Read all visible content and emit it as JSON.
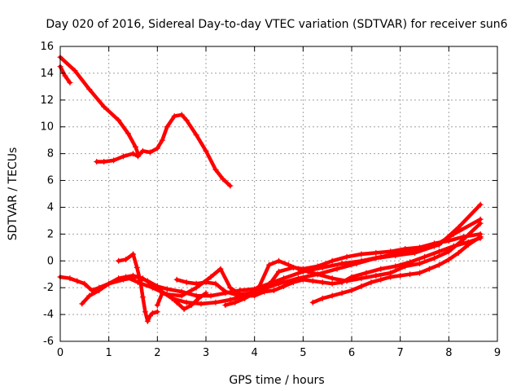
{
  "chart_data": {
    "type": "line",
    "title": "Day 020 of 2016, Sidereal Day-to-day VTEC variation (SDTVAR) for receiver sun6",
    "xlabel": "GPS time / hours",
    "ylabel": "SDTVAR / TECUs",
    "xlim": [
      0,
      9
    ],
    "ylim": [
      -6,
      16
    ],
    "xticks": [
      0,
      1,
      2,
      3,
      4,
      5,
      6,
      7,
      8,
      9
    ],
    "yticks": [
      -6,
      -4,
      -2,
      0,
      2,
      4,
      6,
      8,
      10,
      12,
      14,
      16
    ],
    "grid": true,
    "marker": "+",
    "color": "#ff0000",
    "series": [
      {
        "name": "s1",
        "x": [
          0.0,
          0.1,
          0.2
        ],
        "y": [
          14.5,
          13.8,
          13.3
        ]
      },
      {
        "name": "s2",
        "x": [
          0.0,
          0.3,
          0.6,
          0.9,
          1.2,
          1.4,
          1.55,
          1.6
        ],
        "y": [
          15.2,
          14.2,
          12.8,
          11.5,
          10.5,
          9.5,
          8.5,
          8.0
        ]
      },
      {
        "name": "s3",
        "x": [
          0.75,
          0.9,
          1.1,
          1.3,
          1.5,
          1.6,
          1.7,
          1.85,
          2.0,
          2.1,
          2.2,
          2.35,
          2.5,
          2.6,
          2.8,
          3.0,
          3.2,
          3.35,
          3.5
        ],
        "y": [
          7.4,
          7.4,
          7.5,
          7.8,
          8.0,
          7.8,
          8.2,
          8.1,
          8.4,
          9.0,
          10.0,
          10.8,
          10.9,
          10.5,
          9.4,
          8.2,
          6.8,
          6.1,
          5.6
        ]
      },
      {
        "name": "s4",
        "x": [
          0.0,
          0.2,
          0.35,
          0.5,
          0.65,
          0.8,
          1.0,
          1.3,
          1.6,
          1.8,
          2.0,
          2.2,
          2.5,
          2.8,
          3.1,
          3.4,
          3.7,
          4.0,
          4.3,
          4.6,
          5.0,
          5.4,
          5.8,
          6.2,
          6.6,
          7.0,
          7.4,
          7.8,
          8.2,
          8.65
        ],
        "y": [
          -1.2,
          -1.3,
          -1.5,
          -1.7,
          -2.2,
          -2.0,
          -1.7,
          -1.4,
          -1.2,
          -1.5,
          -1.9,
          -2.1,
          -2.3,
          -2.6,
          -2.6,
          -2.4,
          -2.2,
          -2.1,
          -1.7,
          -1.3,
          -0.8,
          -0.5,
          -0.2,
          0.0,
          0.3,
          0.6,
          0.8,
          1.2,
          2.5,
          4.2
        ]
      },
      {
        "name": "s5",
        "x": [
          0.45,
          0.6,
          0.8,
          1.0,
          1.2,
          1.5,
          1.7,
          1.9,
          2.1,
          2.3,
          2.6,
          2.9,
          3.2,
          3.5,
          3.8,
          4.1,
          4.5,
          4.9,
          5.3,
          5.7,
          6.1,
          6.5,
          6.9,
          7.3,
          7.7,
          8.1,
          8.65
        ],
        "y": [
          -3.2,
          -2.6,
          -2.2,
          -1.7,
          -1.3,
          -1.1,
          -1.3,
          -1.8,
          -2.3,
          -2.8,
          -3.1,
          -3.2,
          -3.1,
          -2.9,
          -2.6,
          -2.2,
          -1.7,
          -1.3,
          -1.0,
          -0.6,
          -0.2,
          0.2,
          0.4,
          0.6,
          1.1,
          2.0,
          3.1
        ]
      },
      {
        "name": "s6",
        "x": [
          1.5,
          1.58,
          1.65,
          1.7,
          1.75,
          1.8,
          1.85,
          1.9,
          2.0
        ],
        "y": [
          0.5,
          -0.5,
          -1.5,
          -2.7,
          -3.8,
          -4.5,
          -4.1,
          -3.9,
          -3.8
        ]
      },
      {
        "name": "s7",
        "x": [
          1.2,
          1.35,
          1.5
        ],
        "y": [
          0.0,
          0.1,
          0.5
        ]
      },
      {
        "name": "s8",
        "x": [
          1.35,
          1.6,
          1.9,
          2.2,
          2.5,
          2.8,
          3.1,
          3.3,
          3.5,
          3.7,
          3.9,
          4.1,
          4.3,
          4.5,
          4.7,
          4.9,
          5.1,
          5.3,
          5.6,
          5.9,
          6.2,
          6.5,
          6.8,
          7.1,
          7.4,
          7.7,
          8.0,
          8.3,
          8.65
        ],
        "y": [
          -1.2,
          -1.6,
          -2.0,
          -2.5,
          -2.6,
          -2.0,
          -1.2,
          -0.6,
          -2.0,
          -2.5,
          -2.4,
          -1.9,
          -0.3,
          0.0,
          -0.3,
          -0.6,
          -0.8,
          -1.0,
          -1.3,
          -1.5,
          -1.3,
          -1.1,
          -0.9,
          -0.4,
          -0.2,
          0.2,
          0.7,
          1.6,
          2.8
        ]
      },
      {
        "name": "s9",
        "x": [
          2.0,
          2.1,
          2.25,
          2.4,
          2.55,
          2.7,
          2.85,
          3.0
        ],
        "y": [
          -3.3,
          -2.4,
          -2.6,
          -3.1,
          -3.6,
          -3.3,
          -2.8,
          -2.4
        ]
      },
      {
        "name": "s10",
        "x": [
          2.4,
          2.6,
          2.8,
          3.0,
          3.2,
          3.4,
          3.6,
          3.8,
          4.0,
          4.2,
          4.5,
          4.8,
          5.0,
          5.3,
          5.6,
          5.9,
          6.2,
          6.5,
          6.8,
          7.1,
          7.4,
          7.7,
          8.0,
          8.3,
          8.65
        ],
        "y": [
          -1.4,
          -1.6,
          -1.7,
          -1.6,
          -1.7,
          -2.3,
          -2.5,
          -2.6,
          -2.6,
          -2.3,
          -0.8,
          -0.5,
          -0.6,
          -0.4,
          0.0,
          0.3,
          0.5,
          0.6,
          0.7,
          0.9,
          1.0,
          1.3,
          1.5,
          1.8,
          2.0
        ]
      },
      {
        "name": "s11",
        "x": [
          3.4,
          3.6,
          3.8,
          4.0,
          4.2,
          4.4,
          4.6,
          4.8,
          5.0,
          5.2,
          5.4,
          5.6,
          5.8,
          6.0,
          6.3,
          6.6,
          6.9,
          7.2,
          7.5,
          7.8,
          8.1,
          8.4,
          8.65
        ],
        "y": [
          -3.3,
          -3.1,
          -2.8,
          -2.4,
          -2.3,
          -2.2,
          -1.9,
          -1.6,
          -1.4,
          -1.5,
          -1.6,
          -1.7,
          -1.6,
          -1.2,
          -0.9,
          -0.6,
          -0.4,
          -0.1,
          0.3,
          0.7,
          1.1,
          1.4,
          1.7
        ]
      },
      {
        "name": "s12",
        "x": [
          5.2,
          5.4,
          5.6,
          5.8,
          6.0,
          6.2,
          6.4,
          6.6,
          6.8,
          7.0,
          7.2,
          7.4,
          7.6,
          7.8,
          8.0,
          8.2,
          8.4,
          8.65
        ],
        "y": [
          -3.1,
          -2.8,
          -2.6,
          -2.4,
          -2.2,
          -1.9,
          -1.6,
          -1.4,
          -1.2,
          -1.1,
          -1.0,
          -0.9,
          -0.6,
          -0.3,
          0.1,
          0.6,
          1.2,
          1.8
        ]
      }
    ]
  }
}
